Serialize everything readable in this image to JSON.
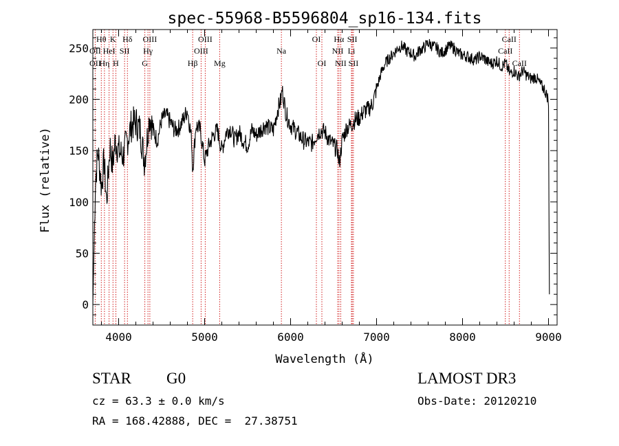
{
  "chart_data": {
    "type": "line",
    "title": "spec-55968-B5596804_sp16-134.fits",
    "xlabel": "Wavelength (Å)",
    "ylabel": "Flux (relative)",
    "xlim": [
      3700,
      9100
    ],
    "ylim": [
      -20,
      268
    ],
    "x_ticks": [
      4000,
      5000,
      6000,
      7000,
      8000,
      9000
    ],
    "y_ticks": [
      0,
      50,
      100,
      150,
      200,
      250
    ],
    "grid": false,
    "series": [
      {
        "x": [
          3700,
          3730,
          3760,
          3800,
          3830,
          3860,
          3900,
          3930,
          3960,
          4000,
          4050,
          4100,
          4150,
          4200,
          4250,
          4300,
          4330,
          4360,
          4400,
          4450,
          4500,
          4550,
          4600,
          4650,
          4700,
          4750,
          4800,
          4850,
          4860,
          4900,
          4950,
          5000,
          5050,
          5100,
          5150,
          5200,
          5250,
          5300,
          5350,
          5400,
          5450,
          5500,
          5550,
          5600,
          5650,
          5700,
          5750,
          5800,
          5850,
          5890,
          5900,
          5950,
          6000,
          6050,
          6100,
          6150,
          6200,
          6250,
          6300,
          6350,
          6400,
          6450,
          6500,
          6550,
          6563,
          6600,
          6650,
          6700,
          6750,
          6800,
          6850,
          6900,
          6950,
          7000,
          7050,
          7100,
          7150,
          7200,
          7250,
          7300,
          7350,
          7400,
          7450,
          7500,
          7550,
          7600,
          7650,
          7700,
          7750,
          7800,
          7850,
          7900,
          7950,
          8000,
          8050,
          8100,
          8150,
          8200,
          8250,
          8300,
          8350,
          8400,
          8450,
          8500,
          8550,
          8600,
          8650,
          8700,
          8750,
          8800,
          8850,
          8900,
          8950,
          9000,
          9010
        ],
        "y": [
          0,
          120,
          150,
          115,
          140,
          100,
          155,
          135,
          160,
          150,
          145,
          160,
          175,
          178,
          170,
          140,
          160,
          185,
          170,
          160,
          180,
          185,
          178,
          170,
          172,
          180,
          190,
          160,
          130,
          175,
          170,
          140,
          155,
          165,
          170,
          150,
          168,
          172,
          160,
          168,
          160,
          155,
          170,
          165,
          170,
          175,
          172,
          170,
          190,
          200,
          210,
          185,
          175,
          170,
          165,
          160,
          158,
          157,
          165,
          170,
          168,
          160,
          155,
          150,
          135,
          160,
          172,
          175,
          180,
          182,
          188,
          190,
          195,
          210,
          225,
          235,
          240,
          245,
          250,
          252,
          247,
          245,
          242,
          248,
          250,
          255,
          252,
          250,
          245,
          248,
          252,
          250,
          245,
          243,
          242,
          240,
          238,
          242,
          240,
          236,
          235,
          238,
          232,
          235,
          225,
          228,
          222,
          228,
          223,
          220,
          222,
          215,
          210,
          200,
          10
        ]
      }
    ],
    "lines": {
      "upper": [
        {
          "label": "Hθ",
          "x": 3798
        },
        {
          "label": "K",
          "x": 3934
        },
        {
          "label": "Hδ",
          "x": 4102
        },
        {
          "label": "OIII",
          "x": 4363
        },
        {
          "label": "OIII",
          "x": 5007
        },
        {
          "label": "OI",
          "x": 6300
        },
        {
          "label": "Hα",
          "x": 6563
        },
        {
          "label": "SII",
          "x": 6717
        },
        {
          "label": "CaII",
          "x": 8542
        }
      ],
      "middle": [
        {
          "label": "OII",
          "x": 3727
        },
        {
          "label": "HeI",
          "x": 3889
        },
        {
          "label": "SII",
          "x": 4069
        },
        {
          "label": "Hγ",
          "x": 4341
        },
        {
          "label": "OIII",
          "x": 4959
        },
        {
          "label": "Na",
          "x": 5893
        },
        {
          "label": "NII",
          "x": 6548
        },
        {
          "label": "Li",
          "x": 6708
        },
        {
          "label": "CaII",
          "x": 8498
        }
      ],
      "lower": [
        {
          "label": "OII",
          "x": 3727
        },
        {
          "label": "Hη",
          "x": 3835
        },
        {
          "label": "H",
          "x": 3968
        },
        {
          "label": "G",
          "x": 4305
        },
        {
          "label": "Hβ",
          "x": 4861
        },
        {
          "label": "Mg",
          "x": 5175
        },
        {
          "label": "OI",
          "x": 6364
        },
        {
          "label": "NII",
          "x": 6583
        },
        {
          "label": "SII",
          "x": 6731
        },
        {
          "label": "CaII",
          "x": 8662
        }
      ]
    },
    "line_marker_color": "#cc0000"
  },
  "info": {
    "object_type": "STAR",
    "subclass": "G0",
    "survey": "LAMOST DR3",
    "cz": "cz = 63.3 ± 0.0 km/s",
    "obs_date": "Obs-Date: 20120210",
    "coords": "RA = 168.42888, DEC =  27.38751"
  }
}
